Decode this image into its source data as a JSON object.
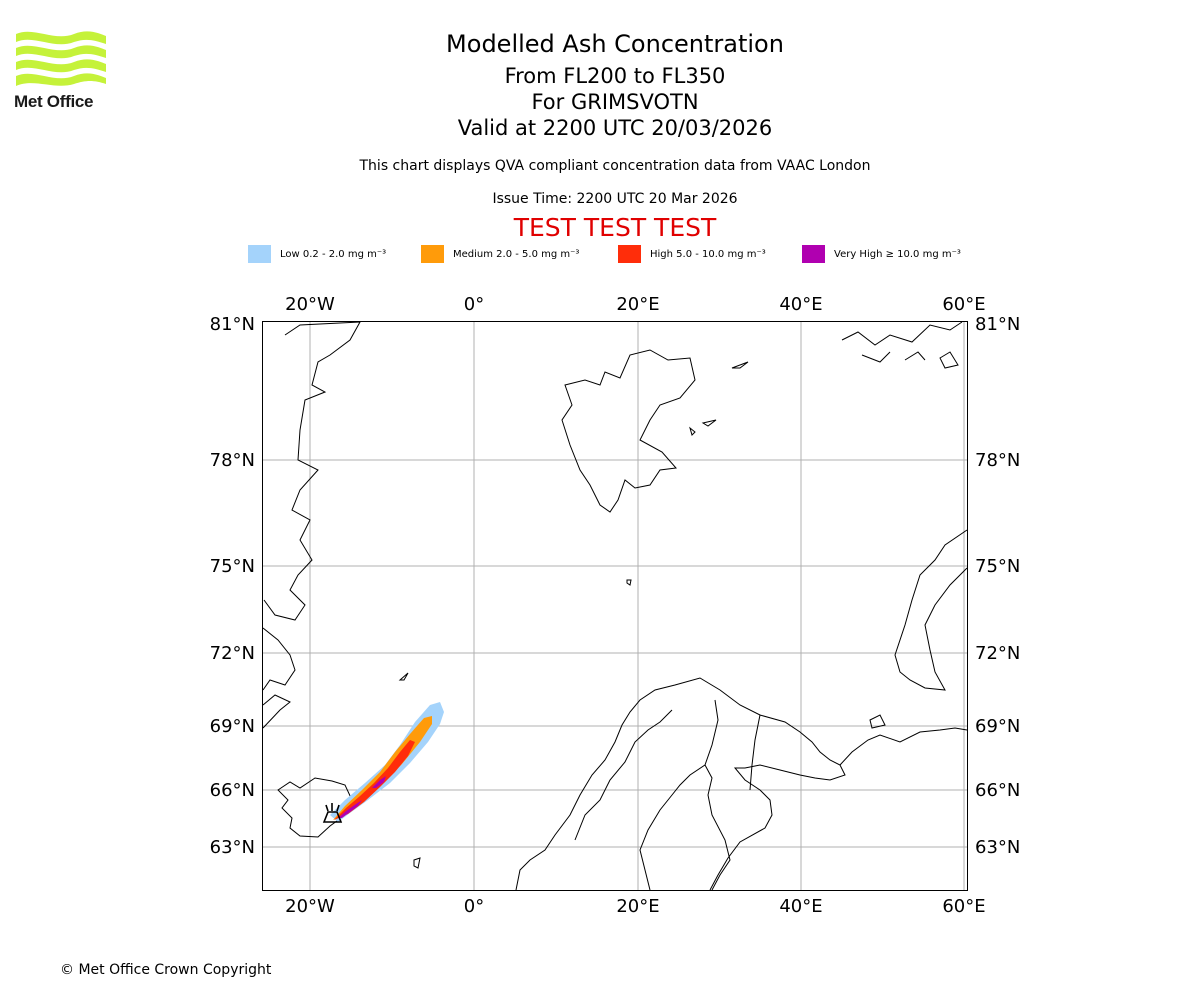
{
  "header": {
    "logo_text": "Met Office",
    "title": "Modelled Ash Concentration",
    "level_range": "From FL200 to FL350",
    "volcano": "For GRIMSVOTN",
    "valid_time": "Valid at 2200 UTC 20/03/2026",
    "subtitle": "This chart displays QVA compliant concentration data from VAAC London",
    "issue_time": "Issue Time: 2200 UTC 20 Mar 2026",
    "test_banner": "TEST TEST TEST"
  },
  "legend": [
    {
      "label": "Low 0.2 - 2.0 mg m⁻³",
      "color": "#a4d3fb"
    },
    {
      "label": "Medium 2.0 - 5.0 mg m⁻³",
      "color": "#ff9b0a"
    },
    {
      "label": "High 5.0 - 10.0 mg m⁻³",
      "color": "#ff2d0a"
    },
    {
      "label": "Very High ≥ 10.0 mg m⁻³",
      "color": "#b000b0"
    }
  ],
  "map": {
    "lon_labels": [
      "20°W",
      "0°",
      "20°E",
      "40°E",
      "60°E"
    ],
    "lat_labels": [
      "81°N",
      "78°N",
      "75°N",
      "72°N",
      "69°N",
      "66°N",
      "63°N"
    ],
    "volcano_marker_icon": "volcano-icon"
  },
  "footer": {
    "copyright": "© Met Office Crown Copyright"
  }
}
